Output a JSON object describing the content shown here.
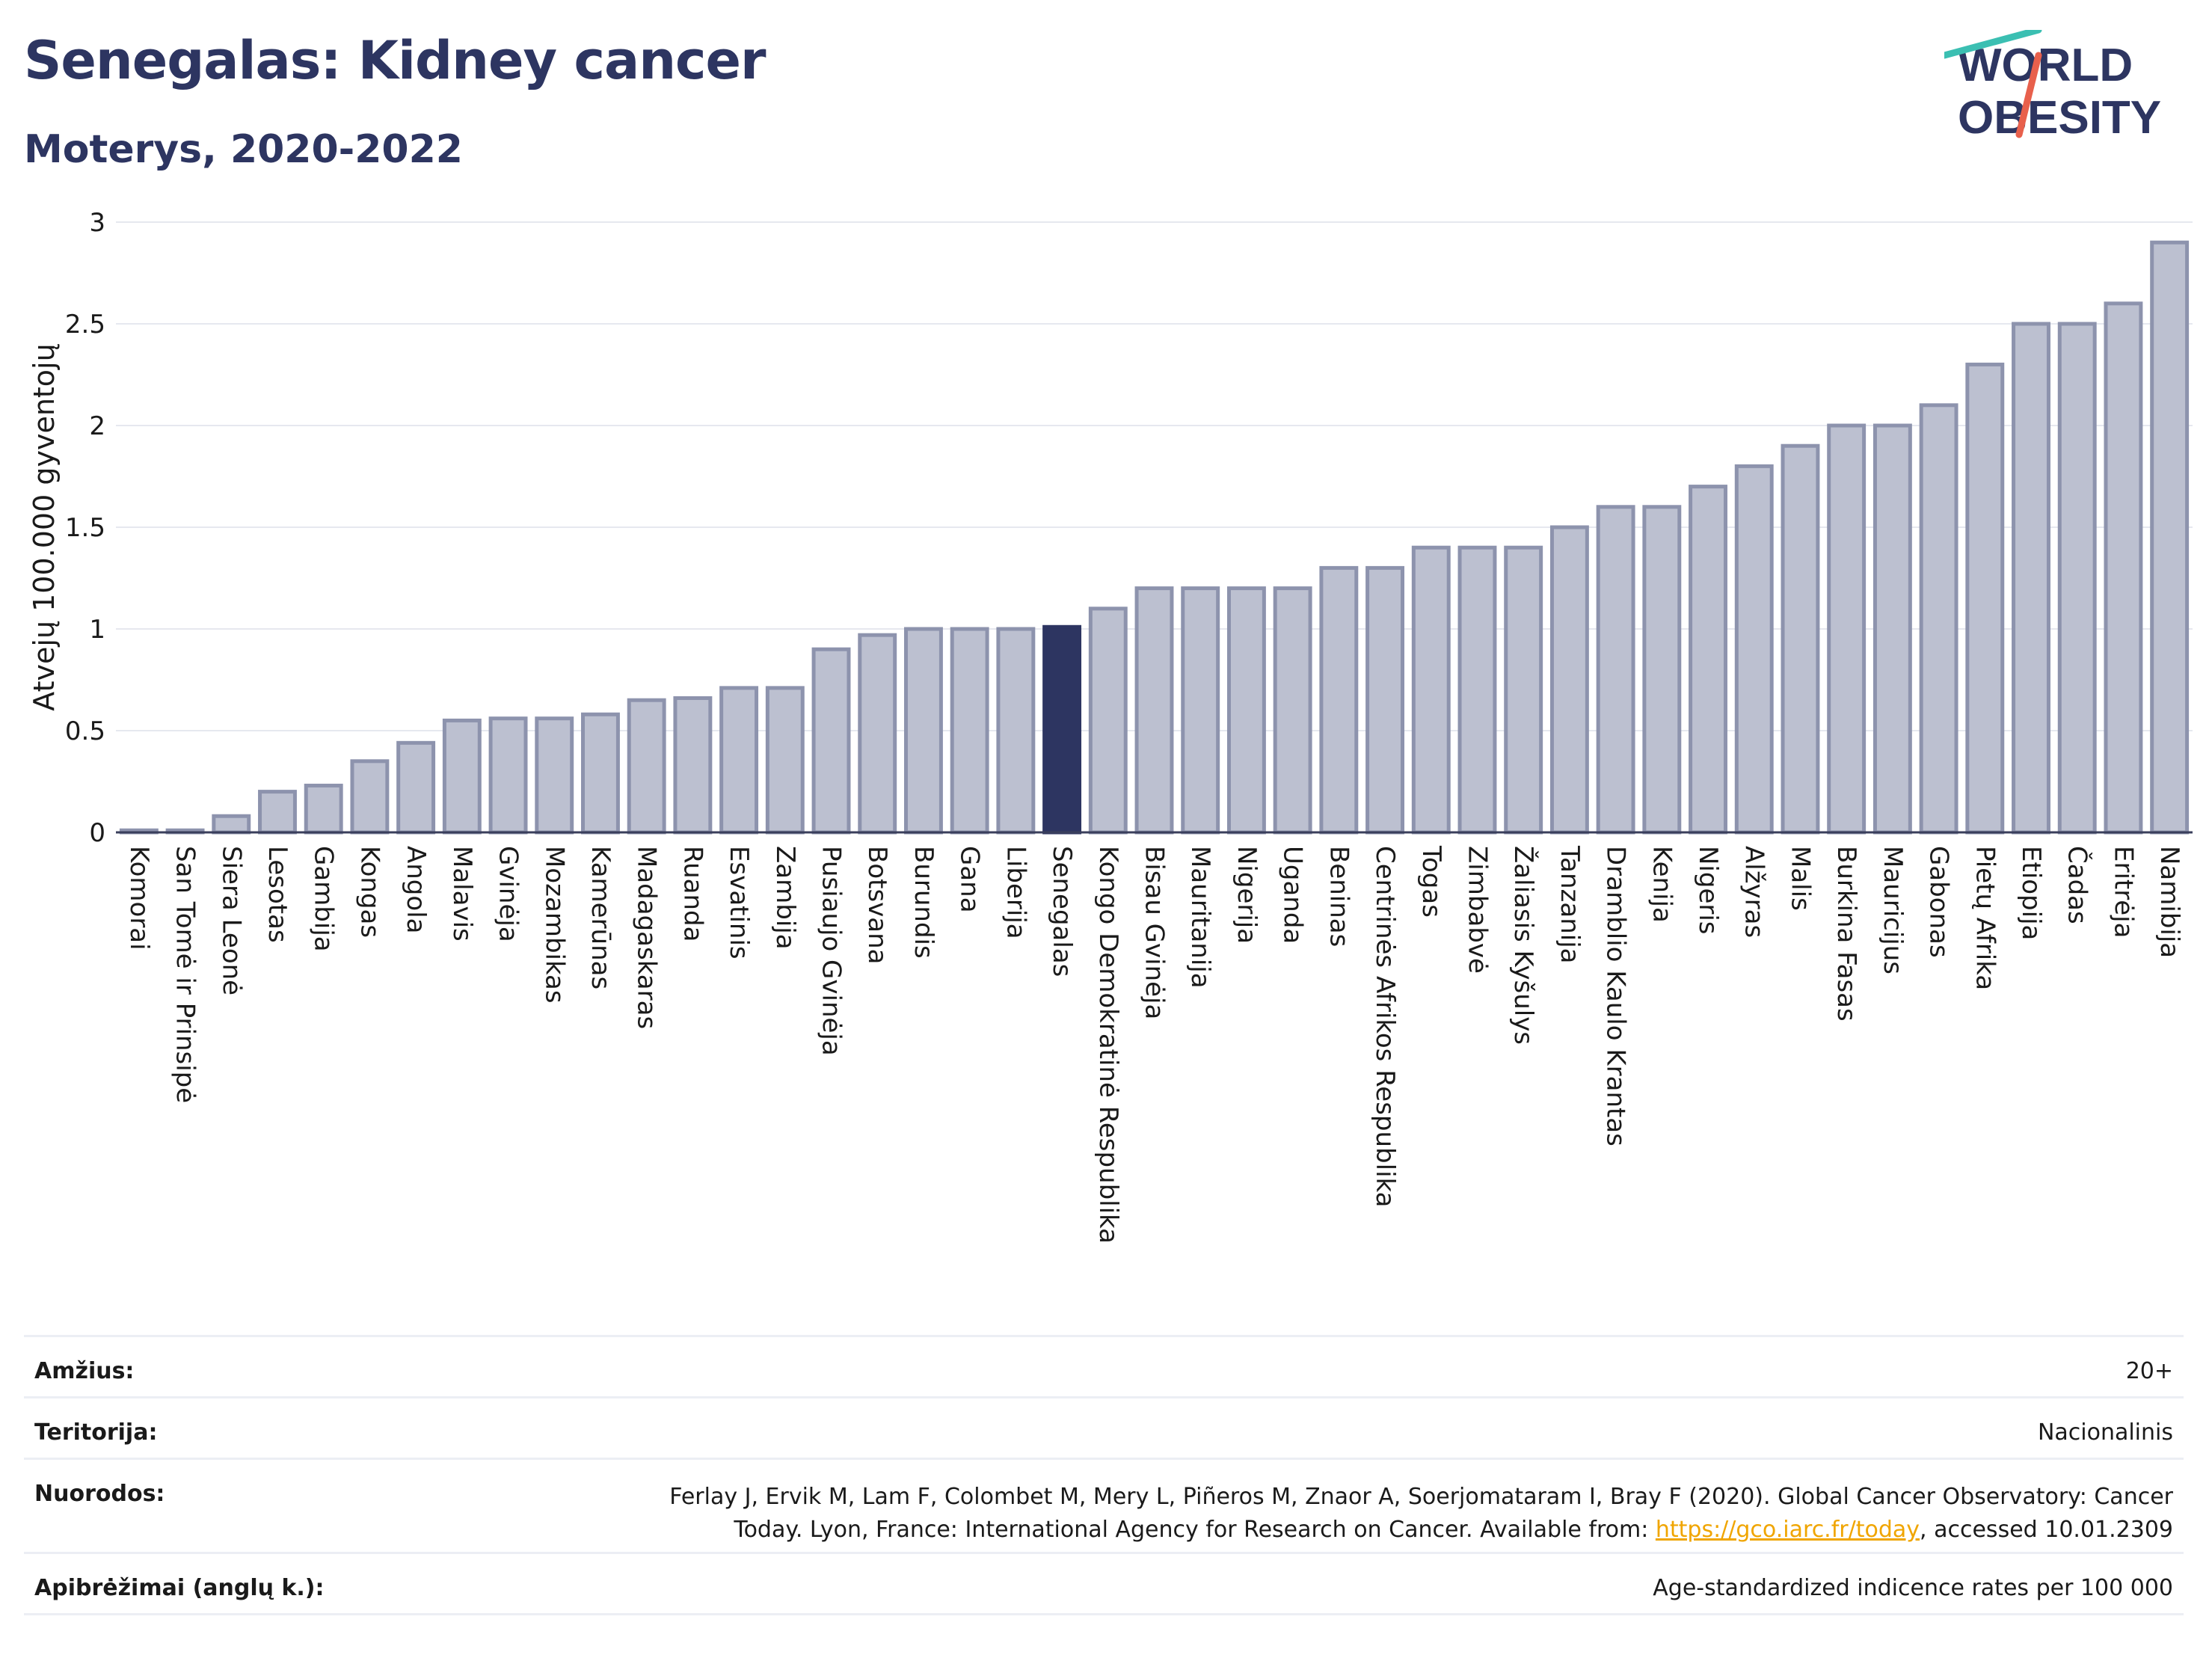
{
  "header": {
    "title": "Senegalas: Kidney cancer",
    "subtitle": "Moterys, 2020-2022"
  },
  "logo": {
    "line1": "WORLD",
    "line2": "OBESITY",
    "brand_color": "#2d3561",
    "accent_teal": "#3bbfb2",
    "accent_red": "#e8604c"
  },
  "colors": {
    "bar": "#bcc0d0",
    "bar_border": "#8d93ad",
    "highlight": "#2d3561",
    "grid": "#e6e8ef"
  },
  "chart_data": {
    "type": "bar",
    "title": "Senegalas: Kidney cancer",
    "subtitle": "Moterys, 2020-2022",
    "ylabel": "Atvejų 100.000 gyventojų",
    "xlabel": "",
    "ylim": [
      0,
      3
    ],
    "yticks": [
      0,
      0.5,
      1,
      1.5,
      2,
      2.5,
      3
    ],
    "ytick_labels": [
      "0",
      "0.5",
      "1",
      "1.5",
      "2",
      "2.5",
      "3"
    ],
    "grid": true,
    "highlight": "Senegalas",
    "categories": [
      "Komorai",
      "San Tomė ir Prinsipė",
      "Siera Leonė",
      "Lesotas",
      "Gambija",
      "Kongas",
      "Angola",
      "Malavis",
      "Gvinėja",
      "Mozambikas",
      "Kamerūnas",
      "Madagaskaras",
      "Ruanda",
      "Esvatinis",
      "Zambija",
      "Pusiaujo Gvinėja",
      "Botsvana",
      "Burundis",
      "Gana",
      "Liberija",
      "Senegalas",
      "Kongo Demokratinė Respublika",
      "Bisau Gvinėja",
      "Mauritanija",
      "Nigerija",
      "Uganda",
      "Beninas",
      "Centrinės Afrikos Respublika",
      "Togas",
      "Zimbabvė",
      "Žaliasis Kyšulys",
      "Tanzanija",
      "Dramblio Kaulo Krantas",
      "Kenija",
      "Nigeris",
      "Alžyras",
      "Malis",
      "Burkina Fasas",
      "Mauricijus",
      "Gabonas",
      "Pietų Afrika",
      "Etiopija",
      "Čadas",
      "Eritrėja",
      "Namibija"
    ],
    "values": [
      0.01,
      0.01,
      0.08,
      0.2,
      0.23,
      0.35,
      0.44,
      0.55,
      0.56,
      0.56,
      0.58,
      0.65,
      0.66,
      0.71,
      0.71,
      0.9,
      0.97,
      1.0,
      1.0,
      1.0,
      1.01,
      1.1,
      1.2,
      1.2,
      1.2,
      1.2,
      1.3,
      1.3,
      1.4,
      1.4,
      1.4,
      1.5,
      1.6,
      1.6,
      1.7,
      1.8,
      1.9,
      2.0,
      2.0,
      2.1,
      2.3,
      2.5,
      2.5,
      2.6,
      2.9
    ]
  },
  "meta": {
    "age_label": "Amžius:",
    "age_value": "20+",
    "territory_label": "Teritorija:",
    "territory_value": "Nacionalinis",
    "refs_label": "Nuorodos:",
    "refs_line1": "Ferlay J, Ervik M, Lam F, Colombet M, Mery L, Piñeros M, Znaor A, Soerjomataram I, Bray F (2020). Global Cancer Observatory: Cancer",
    "refs_line2_pre": "Today. Lyon, France: International Agency for Research on Cancer. Available from: ",
    "refs_link": "https://gco.iarc.fr/today",
    "refs_line2_post": ", accessed 10.01.2309",
    "defs_label": "Apibrėžimai (anglų k.):",
    "defs_value": "Age-standardized indicence rates per 100 000"
  }
}
